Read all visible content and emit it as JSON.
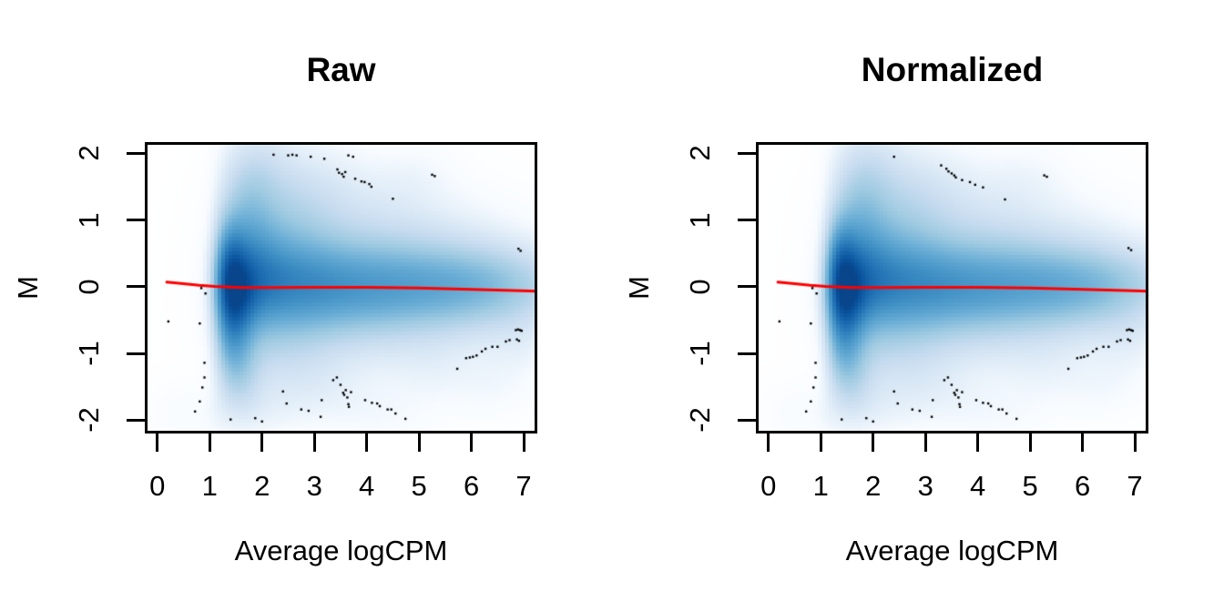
{
  "figure": {
    "background": "#ffffff"
  },
  "chart_data": [
    {
      "type": "scatter",
      "subtype": "smooth-density-scatter",
      "title": "Raw",
      "xlabel": "Average logCPM",
      "ylabel": "M",
      "xlim": [
        -0.24,
        7.26
      ],
      "ylim": [
        -2.2,
        2.17
      ],
      "xticks": [
        0,
        1,
        2,
        3,
        4,
        5,
        6,
        7
      ],
      "yticks": [
        -2,
        -1,
        0,
        1,
        2
      ],
      "grid": "off",
      "legend": "none",
      "palette": [
        "#ffffff",
        "#f7fbff",
        "#deebf7",
        "#c6dbef",
        "#9ecae1",
        "#6baed6",
        "#4292c6",
        "#2171b5",
        "#08519c",
        "#08306b"
      ],
      "color_gamma": 0.55,
      "color_cap": 0.93,
      "point_color": "#000000",
      "trend_color": "#ff0000",
      "left_edge": {
        "center": 1.08,
        "width": 0.1,
        "floor": 0.12
      },
      "density_kernels": [
        [
          1.45,
          -0.1,
          0.28,
          0.42,
          1.0
        ],
        [
          1.35,
          0.35,
          0.22,
          0.45,
          0.75
        ],
        [
          1.4,
          -0.7,
          0.25,
          0.5,
          0.62
        ],
        [
          1.8,
          0.1,
          0.45,
          0.5,
          0.75
        ],
        [
          2.5,
          0.05,
          0.7,
          0.48,
          0.62
        ],
        [
          3.5,
          0.0,
          1.0,
          0.45,
          0.55
        ],
        [
          4.8,
          0.0,
          1.3,
          0.42,
          0.48
        ],
        [
          6.3,
          0.02,
          1.1,
          0.38,
          0.42
        ],
        [
          1.7,
          1.0,
          0.35,
          0.55,
          0.35
        ],
        [
          2.3,
          0.9,
          0.7,
          0.55,
          0.28
        ],
        [
          1.9,
          1.8,
          0.45,
          0.45,
          0.16
        ],
        [
          2.8,
          1.5,
          0.8,
          0.5,
          0.12
        ],
        [
          3.8,
          0.9,
          1.2,
          0.55,
          0.16
        ],
        [
          5.2,
          0.5,
          1.3,
          0.5,
          0.14
        ],
        [
          1.6,
          -1.3,
          0.3,
          0.45,
          0.28
        ],
        [
          2.3,
          -0.9,
          0.7,
          0.5,
          0.2
        ],
        [
          3.5,
          -0.7,
          1.3,
          0.5,
          0.14
        ],
        [
          5.5,
          -0.45,
          1.3,
          0.45,
          0.12
        ],
        [
          2.1,
          -1.85,
          0.5,
          0.3,
          0.06
        ],
        [
          3.1,
          -1.55,
          0.6,
          0.35,
          0.07
        ],
        [
          4.3,
          -1.9,
          0.7,
          0.3,
          0.05
        ],
        [
          5.3,
          -1.25,
          0.6,
          0.35,
          0.06
        ],
        [
          6.4,
          -1.5,
          0.5,
          0.3,
          0.05
        ],
        [
          6.9,
          -0.85,
          0.4,
          0.35,
          0.07
        ],
        [
          0.5,
          -1.9,
          0.4,
          0.3,
          0.3
        ],
        [
          4.9,
          1.65,
          0.5,
          0.3,
          0.05
        ]
      ],
      "trend_line": [
        [
          0.18,
          0.07
        ],
        [
          0.5,
          0.045
        ],
        [
          0.8,
          0.022
        ],
        [
          1.1,
          0.005
        ],
        [
          1.6,
          -0.012
        ],
        [
          2.2,
          -0.012
        ],
        [
          3.0,
          -0.008
        ],
        [
          4.0,
          -0.008
        ],
        [
          5.0,
          -0.02
        ],
        [
          6.0,
          -0.04
        ],
        [
          6.8,
          -0.055
        ],
        [
          7.26,
          -0.065
        ]
      ],
      "outlier_points": [
        [
          2.22,
          1.98
        ],
        [
          2.5,
          1.97
        ],
        [
          2.58,
          1.98
        ],
        [
          2.66,
          1.97
        ],
        [
          2.93,
          1.95
        ],
        [
          3.19,
          1.92
        ],
        [
          3.65,
          1.97
        ],
        [
          3.74,
          1.95
        ],
        [
          3.44,
          1.76
        ],
        [
          3.47,
          1.71
        ],
        [
          3.53,
          1.69
        ],
        [
          3.56,
          1.65
        ],
        [
          3.59,
          1.72
        ],
        [
          3.78,
          1.62
        ],
        [
          3.9,
          1.58
        ],
        [
          3.96,
          1.57
        ],
        [
          4.05,
          1.54
        ],
        [
          4.09,
          1.5
        ],
        [
          4.5,
          1.32
        ],
        [
          5.25,
          1.68
        ],
        [
          5.3,
          1.66
        ],
        [
          6.9,
          0.57
        ],
        [
          6.94,
          0.54
        ],
        [
          0.84,
          -0.02
        ],
        [
          0.92,
          -0.1
        ],
        [
          0.21,
          -0.52
        ],
        [
          0.81,
          -0.55
        ],
        [
          0.9,
          -1.14
        ],
        [
          0.9,
          -1.36
        ],
        [
          0.86,
          -1.51
        ],
        [
          0.81,
          -1.72
        ],
        [
          0.72,
          -1.87
        ],
        [
          1.4,
          -1.99
        ],
        [
          1.87,
          -1.97
        ],
        [
          2.0,
          -2.02
        ],
        [
          2.4,
          -1.57
        ],
        [
          2.47,
          -1.75
        ],
        [
          2.75,
          -1.84
        ],
        [
          2.89,
          -1.86
        ],
        [
          3.12,
          -1.95
        ],
        [
          3.14,
          -1.7
        ],
        [
          3.36,
          -1.4
        ],
        [
          3.43,
          -1.36
        ],
        [
          3.5,
          -1.47
        ],
        [
          3.55,
          -1.59
        ],
        [
          3.57,
          -1.62
        ],
        [
          3.6,
          -1.55
        ],
        [
          3.63,
          -1.66
        ],
        [
          3.65,
          -1.76
        ],
        [
          3.66,
          -1.8
        ],
        [
          3.7,
          -1.58
        ],
        [
          3.97,
          -1.7
        ],
        [
          4.1,
          -1.74
        ],
        [
          4.2,
          -1.75
        ],
        [
          4.25,
          -1.79
        ],
        [
          4.4,
          -1.84
        ],
        [
          4.47,
          -1.84
        ],
        [
          4.55,
          -1.9
        ],
        [
          4.74,
          -1.98
        ],
        [
          5.73,
          -1.23
        ],
        [
          5.9,
          -1.07
        ],
        [
          5.97,
          -1.06
        ],
        [
          6.03,
          -1.05
        ],
        [
          6.1,
          -1.03
        ],
        [
          6.2,
          -0.97
        ],
        [
          6.27,
          -0.93
        ],
        [
          6.4,
          -0.9
        ],
        [
          6.5,
          -0.9
        ],
        [
          6.66,
          -0.82
        ],
        [
          6.73,
          -0.8
        ],
        [
          6.85,
          -0.65
        ],
        [
          6.89,
          -0.64
        ],
        [
          6.93,
          -0.65
        ],
        [
          6.96,
          -0.66
        ],
        [
          6.87,
          -0.79
        ],
        [
          6.91,
          -0.81
        ]
      ]
    },
    {
      "type": "scatter",
      "subtype": "smooth-density-scatter",
      "title": "Normalized",
      "xlabel": "Average logCPM",
      "ylabel": "M",
      "xlim": [
        -0.24,
        7.26
      ],
      "ylim": [
        -2.2,
        2.17
      ],
      "xticks": [
        0,
        1,
        2,
        3,
        4,
        5,
        6,
        7
      ],
      "yticks": [
        -2,
        -1,
        0,
        1,
        2
      ],
      "grid": "off",
      "legend": "none",
      "palette": [
        "#ffffff",
        "#f7fbff",
        "#deebf7",
        "#c6dbef",
        "#9ecae1",
        "#6baed6",
        "#4292c6",
        "#2171b5",
        "#08519c",
        "#08306b"
      ],
      "color_gamma": 0.55,
      "color_cap": 0.93,
      "point_color": "#000000",
      "trend_color": "#ff0000",
      "left_edge": {
        "center": 1.08,
        "width": 0.1,
        "floor": 0.12
      },
      "density_kernels": [
        [
          1.45,
          -0.1,
          0.28,
          0.42,
          1.0
        ],
        [
          1.35,
          0.35,
          0.22,
          0.45,
          0.75
        ],
        [
          1.4,
          -0.7,
          0.25,
          0.5,
          0.62
        ],
        [
          1.8,
          0.1,
          0.45,
          0.5,
          0.75
        ],
        [
          2.5,
          0.05,
          0.7,
          0.48,
          0.62
        ],
        [
          3.5,
          0.0,
          1.0,
          0.45,
          0.55
        ],
        [
          4.8,
          0.0,
          1.3,
          0.42,
          0.48
        ],
        [
          6.3,
          0.02,
          1.1,
          0.38,
          0.42
        ],
        [
          1.7,
          1.0,
          0.35,
          0.55,
          0.35
        ],
        [
          2.3,
          0.9,
          0.7,
          0.55,
          0.28
        ],
        [
          1.9,
          1.8,
          0.45,
          0.45,
          0.16
        ],
        [
          2.8,
          1.5,
          0.8,
          0.5,
          0.12
        ],
        [
          3.8,
          0.9,
          1.2,
          0.55,
          0.16
        ],
        [
          5.2,
          0.5,
          1.3,
          0.5,
          0.14
        ],
        [
          1.6,
          -1.3,
          0.3,
          0.45,
          0.28
        ],
        [
          2.3,
          -0.9,
          0.7,
          0.5,
          0.2
        ],
        [
          3.5,
          -0.7,
          1.3,
          0.5,
          0.14
        ],
        [
          5.5,
          -0.45,
          1.3,
          0.45,
          0.12
        ],
        [
          2.1,
          -1.85,
          0.5,
          0.3,
          0.06
        ],
        [
          3.1,
          -1.55,
          0.6,
          0.35,
          0.07
        ],
        [
          4.3,
          -1.9,
          0.7,
          0.3,
          0.05
        ],
        [
          5.3,
          -1.25,
          0.6,
          0.35,
          0.06
        ],
        [
          6.4,
          -1.5,
          0.5,
          0.3,
          0.05
        ],
        [
          6.9,
          -0.85,
          0.4,
          0.35,
          0.07
        ],
        [
          0.5,
          -1.9,
          0.4,
          0.3,
          0.3
        ],
        [
          4.9,
          1.65,
          0.5,
          0.3,
          0.05
        ]
      ],
      "trend_line": [
        [
          0.18,
          0.07
        ],
        [
          0.5,
          0.045
        ],
        [
          0.8,
          0.022
        ],
        [
          1.1,
          0.005
        ],
        [
          1.6,
          -0.012
        ],
        [
          2.2,
          -0.012
        ],
        [
          3.0,
          -0.008
        ],
        [
          4.0,
          -0.008
        ],
        [
          5.0,
          -0.02
        ],
        [
          6.0,
          -0.04
        ],
        [
          6.8,
          -0.055
        ],
        [
          7.26,
          -0.065
        ]
      ],
      "outlier_points": [
        [
          2.4,
          1.95
        ],
        [
          3.3,
          1.82
        ],
        [
          3.4,
          1.77
        ],
        [
          3.44,
          1.73
        ],
        [
          3.5,
          1.7
        ],
        [
          3.55,
          1.67
        ],
        [
          3.58,
          1.64
        ],
        [
          3.7,
          1.6
        ],
        [
          3.85,
          1.57
        ],
        [
          3.95,
          1.53
        ],
        [
          4.1,
          1.49
        ],
        [
          4.52,
          1.31
        ],
        [
          5.27,
          1.67
        ],
        [
          5.32,
          1.65
        ],
        [
          6.88,
          0.58
        ],
        [
          6.93,
          0.55
        ],
        [
          0.84,
          -0.02
        ],
        [
          0.92,
          -0.1
        ],
        [
          0.21,
          -0.52
        ],
        [
          0.81,
          -0.55
        ],
        [
          0.9,
          -1.14
        ],
        [
          0.9,
          -1.36
        ],
        [
          0.86,
          -1.51
        ],
        [
          0.81,
          -1.72
        ],
        [
          0.72,
          -1.87
        ],
        [
          1.4,
          -1.99
        ],
        [
          1.87,
          -1.97
        ],
        [
          2.0,
          -2.02
        ],
        [
          2.4,
          -1.57
        ],
        [
          2.47,
          -1.75
        ],
        [
          2.75,
          -1.84
        ],
        [
          2.89,
          -1.86
        ],
        [
          3.12,
          -1.95
        ],
        [
          3.14,
          -1.7
        ],
        [
          3.36,
          -1.4
        ],
        [
          3.43,
          -1.36
        ],
        [
          3.5,
          -1.47
        ],
        [
          3.55,
          -1.59
        ],
        [
          3.57,
          -1.62
        ],
        [
          3.6,
          -1.55
        ],
        [
          3.63,
          -1.66
        ],
        [
          3.65,
          -1.76
        ],
        [
          3.66,
          -1.8
        ],
        [
          3.7,
          -1.58
        ],
        [
          3.97,
          -1.7
        ],
        [
          4.1,
          -1.74
        ],
        [
          4.2,
          -1.75
        ],
        [
          4.25,
          -1.79
        ],
        [
          4.4,
          -1.84
        ],
        [
          4.47,
          -1.84
        ],
        [
          4.55,
          -1.9
        ],
        [
          4.74,
          -1.98
        ],
        [
          5.73,
          -1.23
        ],
        [
          5.9,
          -1.07
        ],
        [
          5.97,
          -1.06
        ],
        [
          6.03,
          -1.05
        ],
        [
          6.1,
          -1.03
        ],
        [
          6.2,
          -0.97
        ],
        [
          6.27,
          -0.93
        ],
        [
          6.4,
          -0.9
        ],
        [
          6.5,
          -0.9
        ],
        [
          6.66,
          -0.82
        ],
        [
          6.73,
          -0.8
        ],
        [
          6.85,
          -0.65
        ],
        [
          6.89,
          -0.64
        ],
        [
          6.93,
          -0.65
        ],
        [
          6.96,
          -0.66
        ],
        [
          6.87,
          -0.79
        ],
        [
          6.91,
          -0.81
        ]
      ]
    }
  ]
}
